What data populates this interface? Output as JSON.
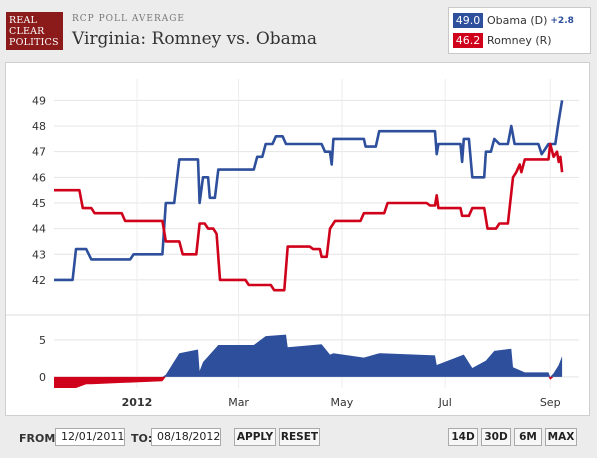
{
  "header": {
    "logo_lines": [
      "REAL",
      "CLEAR",
      "POLITICS"
    ],
    "subtitle": "RCP POLL AVERAGE",
    "title": "Virginia: Romney vs. Obama"
  },
  "legend": [
    {
      "value": "49.0",
      "name": "Obama (D)",
      "spread": "+2.8",
      "color": "#2d4f9c"
    },
    {
      "value": "46.2",
      "name": "Romney (R)",
      "spread": "",
      "color": "#d0021b"
    }
  ],
  "controls": {
    "from_label": "FROM:",
    "from_value": "12/01/2011",
    "to_label": "TO:",
    "to_value": "08/18/2012",
    "apply_label": "APPLY",
    "reset_label": "RESET",
    "ranges": [
      "14D",
      "30D",
      "6M",
      "MAX"
    ]
  },
  "chart_data": {
    "type": "line",
    "title": "Virginia: Romney vs. Obama",
    "xlabel": "",
    "ylabel": "",
    "x_tick_labels": [
      {
        "label": "2012",
        "date": "2012-01-01",
        "bold": true
      },
      {
        "label": "Mar",
        "date": "2012-03-01"
      },
      {
        "label": "May",
        "date": "2012-05-01"
      },
      {
        "label": "Jul",
        "date": "2012-07-01"
      },
      {
        "label": "Sep",
        "date": "2012-09-01"
      }
    ],
    "x_range": [
      "2011-11-13",
      "2012-09-18"
    ],
    "ylim": [
      41.1,
      49.6
    ],
    "y_ticks": [
      42,
      43,
      44,
      45,
      46,
      47,
      48,
      49
    ],
    "spread_ylim": [
      -1.5,
      7
    ],
    "spread_ticks": [
      0,
      5
    ],
    "grid": true,
    "series": [
      {
        "name": "Obama (D)",
        "color": "#2d4f9c",
        "points": [
          [
            "2011-11-13",
            42.0
          ],
          [
            "2011-11-24",
            42.0
          ],
          [
            "2011-11-26",
            43.2
          ],
          [
            "2011-12-02",
            43.2
          ],
          [
            "2011-12-05",
            42.8
          ],
          [
            "2011-12-28",
            42.8
          ],
          [
            "2011-12-30",
            43.0
          ],
          [
            "2012-01-16",
            43.0
          ],
          [
            "2012-01-18",
            45.0
          ],
          [
            "2012-01-23",
            45.0
          ],
          [
            "2012-01-26",
            46.7
          ],
          [
            "2012-02-06",
            46.7
          ],
          [
            "2012-02-07",
            45.0
          ],
          [
            "2012-02-09",
            46.0
          ],
          [
            "2012-02-12",
            46.0
          ],
          [
            "2012-02-13",
            45.2
          ],
          [
            "2012-02-16",
            45.2
          ],
          [
            "2012-02-18",
            46.3
          ],
          [
            "2012-03-10",
            46.3
          ],
          [
            "2012-03-12",
            46.8
          ],
          [
            "2012-03-15",
            46.8
          ],
          [
            "2012-03-17",
            47.3
          ],
          [
            "2012-03-21",
            47.3
          ],
          [
            "2012-03-23",
            47.6
          ],
          [
            "2012-03-27",
            47.6
          ],
          [
            "2012-03-29",
            47.3
          ],
          [
            "2012-04-19",
            47.3
          ],
          [
            "2012-04-21",
            47.0
          ],
          [
            "2012-04-24",
            47.0
          ],
          [
            "2012-04-25",
            46.5
          ],
          [
            "2012-04-26",
            47.5
          ],
          [
            "2012-05-14",
            47.5
          ],
          [
            "2012-05-15",
            47.2
          ],
          [
            "2012-05-21",
            47.2
          ],
          [
            "2012-05-23",
            47.8
          ],
          [
            "2012-06-25",
            47.8
          ],
          [
            "2012-06-26",
            46.9
          ],
          [
            "2012-06-27",
            47.3
          ],
          [
            "2012-07-10",
            47.3
          ],
          [
            "2012-07-11",
            46.6
          ],
          [
            "2012-07-12",
            47.5
          ],
          [
            "2012-07-15",
            47.5
          ],
          [
            "2012-07-17",
            46.0
          ],
          [
            "2012-07-24",
            46.0
          ],
          [
            "2012-07-25",
            47.0
          ],
          [
            "2012-07-28",
            47.0
          ],
          [
            "2012-07-30",
            47.5
          ],
          [
            "2012-08-02",
            47.3
          ],
          [
            "2012-08-07",
            47.3
          ],
          [
            "2012-08-09",
            48.0
          ],
          [
            "2012-08-11",
            47.3
          ],
          [
            "2012-08-25",
            47.3
          ],
          [
            "2012-08-27",
            46.9
          ],
          [
            "2012-08-29",
            47.1
          ],
          [
            "2012-08-31",
            47.3
          ],
          [
            "2012-09-04",
            47.3
          ],
          [
            "2012-09-06",
            48.2
          ],
          [
            "2012-09-08",
            49.0
          ]
        ]
      },
      {
        "name": "Romney (R)",
        "color": "#d0021b",
        "points": [
          [
            "2011-11-13",
            45.5
          ],
          [
            "2011-11-28",
            45.5
          ],
          [
            "2011-11-30",
            44.8
          ],
          [
            "2011-12-05",
            44.8
          ],
          [
            "2011-12-07",
            44.6
          ],
          [
            "2011-12-23",
            44.6
          ],
          [
            "2011-12-25",
            44.3
          ],
          [
            "2012-01-16",
            44.3
          ],
          [
            "2012-01-18",
            43.5
          ],
          [
            "2012-01-26",
            43.5
          ],
          [
            "2012-01-28",
            43.0
          ],
          [
            "2012-02-05",
            43.0
          ],
          [
            "2012-02-07",
            44.2
          ],
          [
            "2012-02-10",
            44.2
          ],
          [
            "2012-02-12",
            44.0
          ],
          [
            "2012-02-15",
            44.0
          ],
          [
            "2012-02-17",
            43.8
          ],
          [
            "2012-02-19",
            42.0
          ],
          [
            "2012-03-05",
            42.0
          ],
          [
            "2012-03-07",
            41.8
          ],
          [
            "2012-03-20",
            41.8
          ],
          [
            "2012-03-22",
            41.6
          ],
          [
            "2012-03-28",
            41.6
          ],
          [
            "2012-03-30",
            43.3
          ],
          [
            "2012-04-12",
            43.3
          ],
          [
            "2012-04-14",
            43.2
          ],
          [
            "2012-04-18",
            43.2
          ],
          [
            "2012-04-19",
            42.9
          ],
          [
            "2012-04-22",
            42.9
          ],
          [
            "2012-04-24",
            44.0
          ],
          [
            "2012-04-27",
            44.3
          ],
          [
            "2012-05-12",
            44.3
          ],
          [
            "2012-05-14",
            44.6
          ],
          [
            "2012-05-26",
            44.6
          ],
          [
            "2012-05-28",
            45.0
          ],
          [
            "2012-06-20",
            45.0
          ],
          [
            "2012-06-22",
            44.9
          ],
          [
            "2012-06-25",
            44.9
          ],
          [
            "2012-06-26",
            45.3
          ],
          [
            "2012-06-27",
            44.8
          ],
          [
            "2012-07-10",
            44.8
          ],
          [
            "2012-07-11",
            44.5
          ],
          [
            "2012-07-15",
            44.5
          ],
          [
            "2012-07-17",
            44.8
          ],
          [
            "2012-07-24",
            44.8
          ],
          [
            "2012-07-26",
            44.0
          ],
          [
            "2012-07-31",
            44.0
          ],
          [
            "2012-08-02",
            44.2
          ],
          [
            "2012-08-07",
            44.2
          ],
          [
            "2012-08-10",
            46.0
          ],
          [
            "2012-08-12",
            46.2
          ],
          [
            "2012-08-14",
            46.5
          ],
          [
            "2012-08-15",
            46.2
          ],
          [
            "2012-08-17",
            46.7
          ],
          [
            "2012-08-31",
            46.7
          ],
          [
            "2012-09-01",
            47.3
          ],
          [
            "2012-09-03",
            46.8
          ],
          [
            "2012-09-05",
            47.0
          ],
          [
            "2012-09-06",
            46.6
          ],
          [
            "2012-09-07",
            46.8
          ],
          [
            "2012-09-08",
            46.2
          ]
        ]
      }
    ],
    "spread": [
      [
        "2011-11-13",
        -1.5
      ],
      [
        "2011-11-24",
        -1.5
      ],
      [
        "2011-11-26",
        -1.5
      ],
      [
        "2011-12-02",
        -1.0
      ],
      [
        "2011-12-05",
        -1.0
      ],
      [
        "2011-12-25",
        -0.8
      ],
      [
        "2012-01-16",
        -0.6
      ],
      [
        "2012-01-18",
        0.3
      ],
      [
        "2012-01-26",
        3.2
      ],
      [
        "2012-02-06",
        3.7
      ],
      [
        "2012-02-07",
        0.8
      ],
      [
        "2012-02-09",
        2.0
      ],
      [
        "2012-02-18",
        4.3
      ],
      [
        "2012-03-10",
        4.3
      ],
      [
        "2012-03-17",
        5.5
      ],
      [
        "2012-03-29",
        5.7
      ],
      [
        "2012-03-30",
        4.0
      ],
      [
        "2012-04-19",
        4.4
      ],
      [
        "2012-04-24",
        3.0
      ],
      [
        "2012-04-26",
        3.2
      ],
      [
        "2012-05-14",
        2.6
      ],
      [
        "2012-05-23",
        3.2
      ],
      [
        "2012-06-25",
        2.9
      ],
      [
        "2012-06-26",
        1.6
      ],
      [
        "2012-07-12",
        3.0
      ],
      [
        "2012-07-17",
        1.2
      ],
      [
        "2012-07-25",
        2.2
      ],
      [
        "2012-07-30",
        3.5
      ],
      [
        "2012-08-09",
        3.8
      ],
      [
        "2012-08-10",
        1.3
      ],
      [
        "2012-08-17",
        0.6
      ],
      [
        "2012-08-31",
        0.6
      ],
      [
        "2012-09-01",
        -0.4
      ],
      [
        "2012-09-03",
        0.5
      ],
      [
        "2012-09-06",
        1.6
      ],
      [
        "2012-09-08",
        2.8
      ]
    ]
  }
}
